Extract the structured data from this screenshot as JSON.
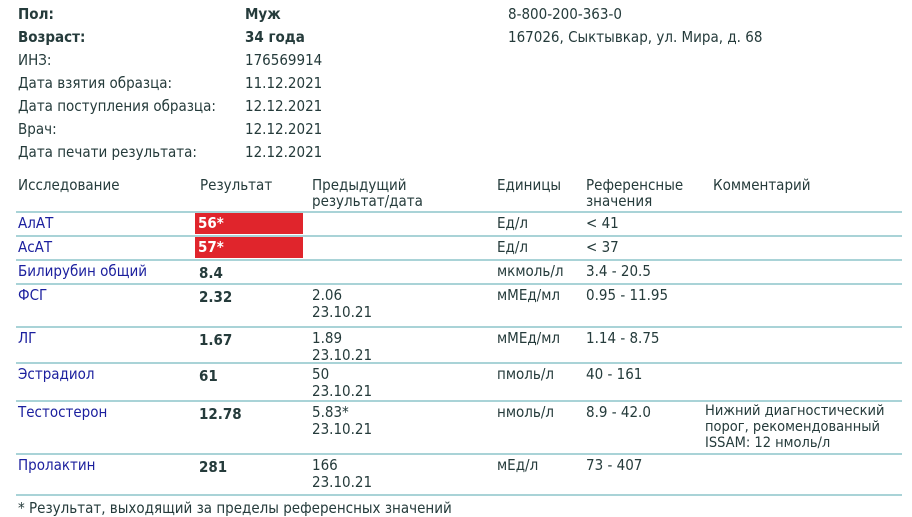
{
  "patient": [
    {
      "label": "Пол:",
      "value": "Муж",
      "bold": true
    },
    {
      "label": "Возраст:",
      "value": "34 года",
      "bold": true
    },
    {
      "label": "ИНЗ:",
      "value": "176569914"
    },
    {
      "label": "Дата взятия образца:",
      "value": "11.12.2021"
    },
    {
      "label": "Дата поступления образца:",
      "value": "12.12.2021"
    },
    {
      "label": "Врач:",
      "value": "12.12.2021"
    },
    {
      "label": "Дата печати результата:",
      "value": "12.12.2021"
    }
  ],
  "lab": {
    "phone": "8-800-200-363-0",
    "address": "167026, Сыктывкар, ул. Мира, д. 68"
  },
  "table": {
    "headers": {
      "test": "Исследование",
      "result": "Результат",
      "prev1": "Предыдущий",
      "prev2": "результат/дата",
      "units": "Единицы",
      "ref1": "Референсные",
      "ref2": "значения",
      "comment": "Комментарий"
    },
    "rows": [
      {
        "test": "АлАТ",
        "result": "56*",
        "flag": true,
        "prev": "",
        "prev_date": "",
        "units": "Ед/л",
        "ref": "< 41",
        "comment": []
      },
      {
        "test": "АсАТ",
        "result": "57*",
        "flag": true,
        "prev": "",
        "prev_date": "",
        "units": "Ед/л",
        "ref": "< 37",
        "comment": []
      },
      {
        "test": "Билирубин общий",
        "result": "8.4",
        "prev": "",
        "prev_date": "",
        "units": "мкмоль/л",
        "ref": "3.4 - 20.5",
        "comment": []
      },
      {
        "test": "ФСГ",
        "result": "2.32",
        "prev": "2.06",
        "prev_date": "23.10.21",
        "units": "мМЕд/мл",
        "ref": "0.95 - 11.95",
        "comment": []
      },
      {
        "test": "ЛГ",
        "result": "1.67",
        "prev": "1.89",
        "prev_date": "23.10.21",
        "units": "мМЕд/мл",
        "ref": "1.14 - 8.75",
        "comment": []
      },
      {
        "test": "Эстрадиол",
        "result": "61",
        "prev": "50",
        "prev_date": "23.10.21",
        "units": "пмоль/л",
        "ref": "40 - 161",
        "comment": []
      },
      {
        "test": "Тестостерон",
        "result": "12.78",
        "prev": "5.83*",
        "prev_date": "23.10.21",
        "units": "нмоль/л",
        "ref": "8.9 - 42.0",
        "comment": [
          "Нижний диагностический",
          "порог, рекомендованный",
          "ISSAM: 12 нмоль/л"
        ]
      },
      {
        "test": "Пролактин",
        "result": "281",
        "prev": "166",
        "prev_date": "23.10.21",
        "units": "мЕд/л",
        "ref": "73 - 407",
        "comment": []
      }
    ]
  },
  "footnote": "* Результат, выходящий за пределы референсных значений",
  "colors": {
    "flag": "#e0252c",
    "test_name": "#1b1f9e",
    "divider": "#a9d3d7"
  }
}
